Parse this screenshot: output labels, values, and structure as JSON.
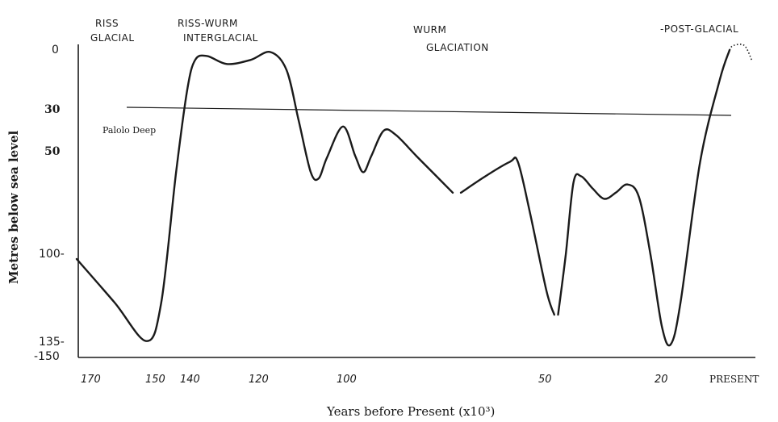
{
  "chart_data": {
    "type": "line",
    "title": "",
    "xlabel": "Years before Present (x10³)",
    "ylabel": "Metres below sea level",
    "x_direction": "decreasing (past on left, present on right)",
    "y_direction": "inverted (0 at top)",
    "xlim": [
      170,
      0
    ],
    "ylim": [
      0,
      150
    ],
    "x_ticks": [
      {
        "value": 170,
        "label": "170"
      },
      {
        "value": 150,
        "label": "150"
      },
      {
        "value": 140,
        "label": "140"
      },
      {
        "value": 120,
        "label": "120"
      },
      {
        "value": 100,
        "label": "100"
      },
      {
        "value": 50,
        "label": "50"
      },
      {
        "value": 20,
        "label": "20"
      },
      {
        "value": 0,
        "label": "PRESENT"
      }
    ],
    "y_ticks": [
      {
        "value": 0,
        "label": "0"
      },
      {
        "value": 30,
        "label": "30"
      },
      {
        "value": 50,
        "label": "50"
      },
      {
        "value": 100,
        "label": "100-"
      },
      {
        "value": 135,
        "label": "135-"
      },
      {
        "value": 150,
        "label": "-150"
      }
    ],
    "reference_line": {
      "value": 30,
      "label": "Palolo Deep"
    },
    "period_labels": [
      {
        "text": "RISS GLACIAL",
        "lines": [
          "RISS",
          "GLACIAL"
        ]
      },
      {
        "text": "RISS-WURM INTERGLACIAL",
        "lines": [
          "RISS-WURM",
          "INTERGLACIAL"
        ]
      },
      {
        "text": "WURM GLACIATION",
        "lines": [
          "WURM",
          "GLACIATION"
        ]
      },
      {
        "text": "-POST-GLACIAL",
        "lines": [
          "-POST-GLACIAL"
        ]
      }
    ],
    "series": [
      {
        "segments": [
          [
            [
              171,
              102
            ],
            [
              160,
              120
            ],
            [
              151,
              137
            ],
            [
              147,
              120
            ],
            [
              143,
              60
            ],
            [
              140,
              20
            ],
            [
              138,
              5
            ],
            [
              135,
              3
            ],
            [
              130,
              7
            ],
            [
              124,
              5
            ],
            [
              119,
              1
            ],
            [
              115,
              10
            ],
            [
              112,
              35
            ],
            [
              109,
              60
            ],
            [
              107,
              63
            ],
            [
              105,
              53
            ],
            [
              101,
              38
            ],
            [
              98,
              52
            ],
            [
              96,
              60
            ],
            [
              94,
              52
            ],
            [
              91,
              40
            ],
            [
              88,
              42
            ],
            [
              83,
              52
            ],
            [
              78,
              62
            ],
            [
              74,
              70
            ]
          ],
          [
            [
              72,
              70
            ],
            [
              66,
              62
            ],
            [
              60,
              55
            ],
            [
              58,
              55
            ],
            [
              55,
              80
            ],
            [
              51,
              115
            ],
            [
              49,
              125
            ]
          ],
          [
            [
              48,
              125
            ],
            [
              46,
              100
            ],
            [
              44,
              65
            ],
            [
              42,
              62
            ],
            [
              39,
              68
            ],
            [
              36,
              73
            ],
            [
              33,
              70
            ],
            [
              30,
              66
            ],
            [
              27,
              72
            ],
            [
              24,
              100
            ],
            [
              21,
              130
            ],
            [
              19,
              140
            ],
            [
              17,
              120
            ],
            [
              13,
              55
            ],
            [
              9,
              15
            ],
            [
              7,
              0
            ]
          ]
        ],
        "dotted_end": [
          [
            7,
            0
          ],
          [
            6,
            -4
          ],
          [
            3,
            -4
          ],
          [
            1,
            5
          ]
        ]
      }
    ],
    "grid": false,
    "legend": "none"
  }
}
